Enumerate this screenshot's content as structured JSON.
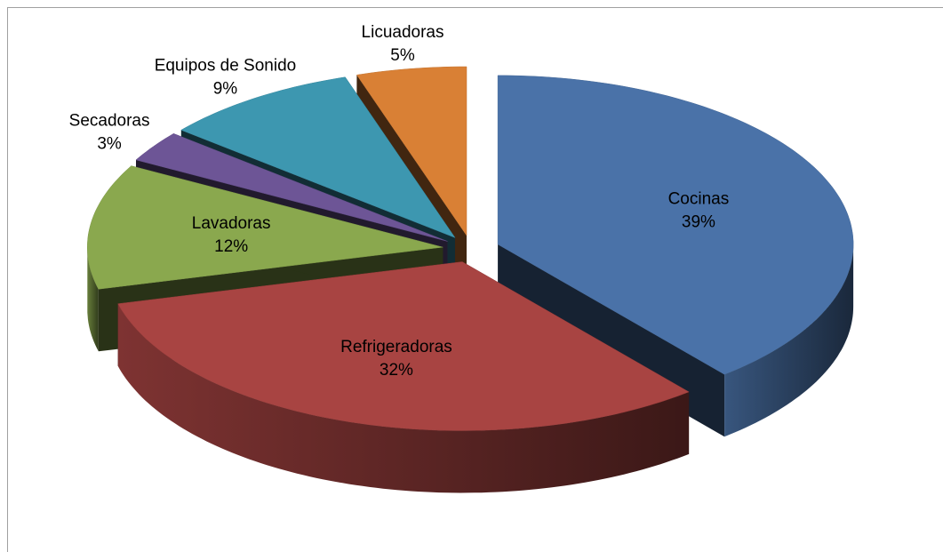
{
  "chart_data": {
    "type": "pie",
    "three_d": true,
    "categories": [
      "Cocinas",
      "Refrigeradoras",
      "Lavadoras",
      "Secadoras",
      "Equipos de Sonido",
      "Licuadoras"
    ],
    "values": [
      39,
      32,
      12,
      3,
      9,
      5
    ],
    "value_labels": [
      "39%",
      "32%",
      "12%",
      "3%",
      "9%",
      "5%"
    ],
    "colors": [
      "#4a72a8",
      "#a84442",
      "#8aa84e",
      "#6d5596",
      "#3d97b0",
      "#d98035"
    ]
  }
}
